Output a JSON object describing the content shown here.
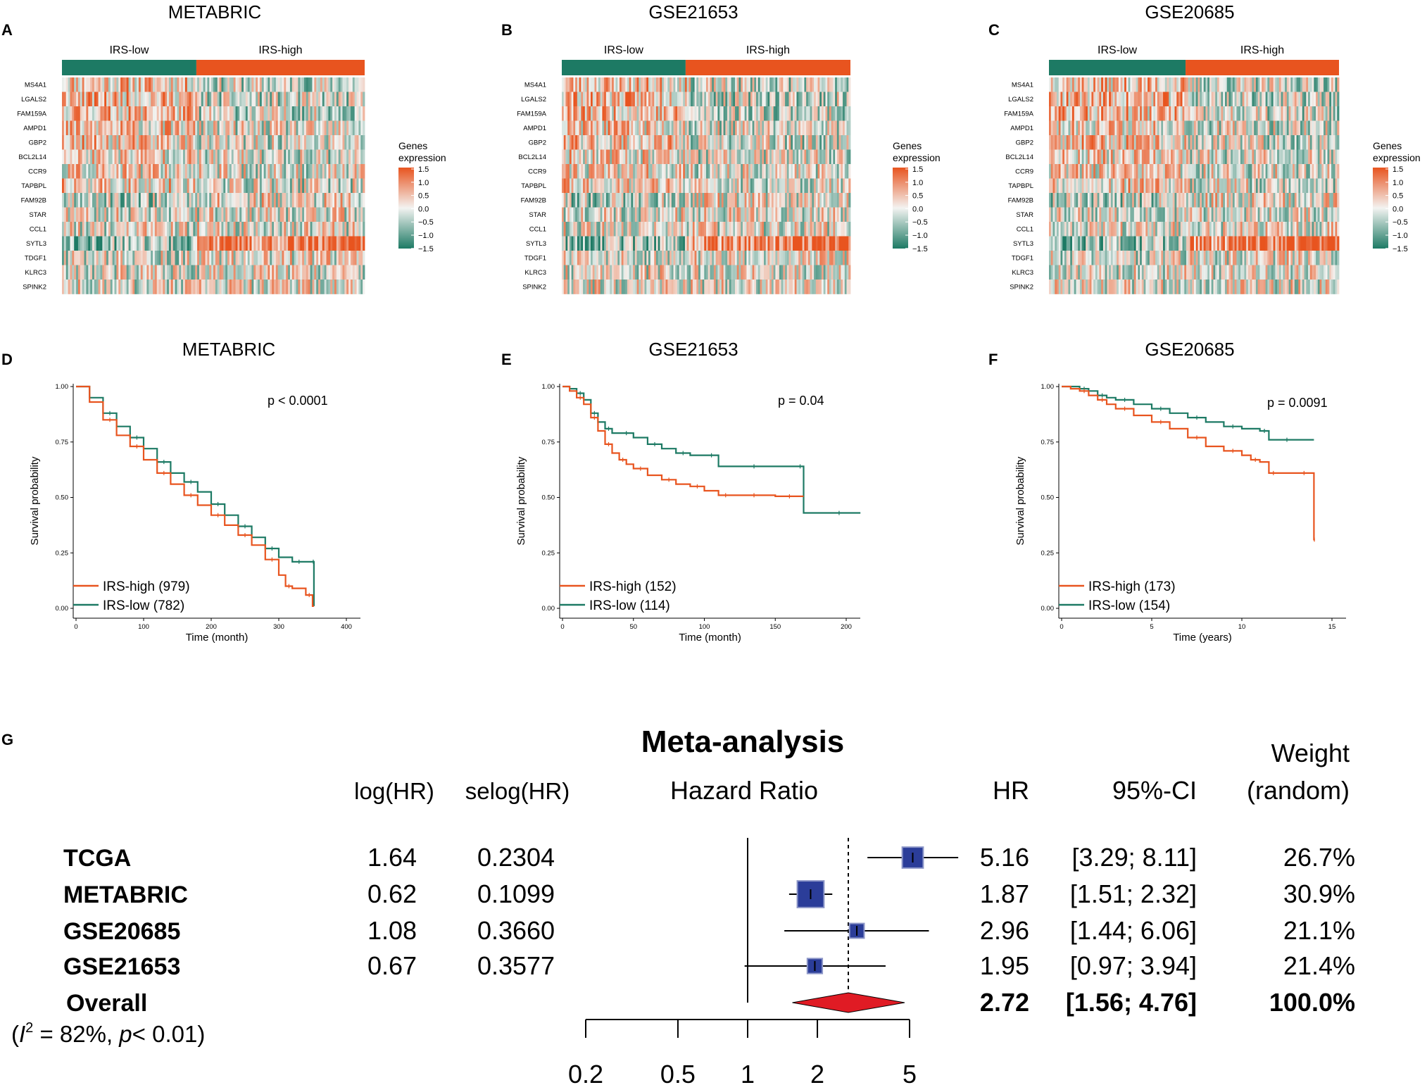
{
  "panel_letters": {
    "A": "A",
    "B": "B",
    "C": "C",
    "D": "D",
    "E": "E",
    "F": "F",
    "G": "G"
  },
  "colors": {
    "high": "#e8541f",
    "low": "#1d7a64",
    "mid": "#f3f3f1",
    "meta": "#2b3d99",
    "overall": "#e01b24"
  },
  "genes": [
    "MS4A1",
    "LGALS2",
    "FAM159A",
    "AMPD1",
    "GBP2",
    "BCL2L14",
    "CCR9",
    "TAPBPL",
    "FAM92B",
    "STAR",
    "CCL1",
    "SYTL3",
    "TDGF1",
    "KLRC3",
    "SPINK2"
  ],
  "heatmaps": [
    {
      "title": "METABRIC",
      "low_label": "IRS-low",
      "high_label": "IRS-high",
      "low_fraction": 0.444,
      "n_samples": 1761,
      "seed": 11
    },
    {
      "title": "GSE21653",
      "low_label": "IRS-low",
      "high_label": "IRS-high",
      "low_fraction": 0.429,
      "n_samples": 266,
      "seed": 23
    },
    {
      "title": "GSE20685",
      "low_label": "IRS-low",
      "high_label": "IRS-high",
      "low_fraction": 0.471,
      "n_samples": 327,
      "seed": 37
    }
  ],
  "legend": {
    "title_line1": "Genes",
    "title_line2": "expression",
    "ticks": [
      "1.5",
      "1.0",
      "0.5",
      "0.0",
      "−0.5",
      "−1.0",
      "−1.5"
    ]
  },
  "chart_data": [
    {
      "type": "line",
      "title": "METABRIC",
      "xlabel": "Time (month)",
      "ylabel": "Survival probability",
      "xlim": [
        0,
        400
      ],
      "ylim": [
        0,
        1
      ],
      "xticks": [
        "0",
        "100",
        "200",
        "300",
        "400"
      ],
      "yticks": [
        "0.00",
        "0.25",
        "0.50",
        "0.75",
        "1.00"
      ],
      "pvalue": "p < 0.0001",
      "series": [
        {
          "name": "IRS-high (979)",
          "color": "#e8541f",
          "x": [
            0,
            20,
            40,
            60,
            80,
            100,
            120,
            140,
            160,
            180,
            200,
            220,
            240,
            260,
            280,
            300,
            310,
            320,
            340,
            350,
            352
          ],
          "y": [
            1.0,
            0.93,
            0.85,
            0.78,
            0.73,
            0.67,
            0.61,
            0.56,
            0.51,
            0.465,
            0.42,
            0.375,
            0.33,
            0.285,
            0.22,
            0.15,
            0.1,
            0.09,
            0.06,
            0.01,
            0.01
          ]
        },
        {
          "name": "IRS-low (782)",
          "color": "#1d7a64",
          "x": [
            0,
            20,
            40,
            60,
            80,
            100,
            120,
            140,
            160,
            180,
            200,
            220,
            240,
            260,
            280,
            300,
            320,
            340,
            350,
            352
          ],
          "y": [
            1.0,
            0.95,
            0.88,
            0.82,
            0.77,
            0.72,
            0.66,
            0.61,
            0.57,
            0.525,
            0.47,
            0.42,
            0.37,
            0.32,
            0.27,
            0.23,
            0.21,
            0.21,
            0.21,
            0.01
          ]
        }
      ]
    },
    {
      "type": "line",
      "title": "GSE21653",
      "xlabel": "Time (month)",
      "ylabel": "Survival probability",
      "xlim": [
        0,
        200
      ],
      "ylim": [
        0,
        1
      ],
      "xticks": [
        "0",
        "50",
        "100",
        "150",
        "200"
      ],
      "yticks": [
        "0.00",
        "0.25",
        "0.50",
        "0.75",
        "1.00"
      ],
      "pvalue": "p = 0.04",
      "series": [
        {
          "name": "IRS-high (152)",
          "color": "#e8541f",
          "x": [
            0,
            5,
            10,
            15,
            20,
            25,
            30,
            35,
            40,
            45,
            50,
            60,
            70,
            80,
            90,
            100,
            110,
            120,
            130,
            140,
            150,
            170
          ],
          "y": [
            1.0,
            0.98,
            0.95,
            0.92,
            0.86,
            0.8,
            0.74,
            0.7,
            0.67,
            0.65,
            0.63,
            0.6,
            0.58,
            0.56,
            0.55,
            0.53,
            0.51,
            0.51,
            0.51,
            0.51,
            0.505,
            0.505
          ]
        },
        {
          "name": "IRS-low (114)",
          "color": "#1d7a64",
          "x": [
            0,
            5,
            10,
            15,
            20,
            25,
            30,
            35,
            40,
            50,
            60,
            70,
            80,
            90,
            100,
            110,
            120,
            150,
            165,
            170,
            180,
            210
          ],
          "y": [
            1.0,
            0.99,
            0.97,
            0.94,
            0.88,
            0.84,
            0.81,
            0.79,
            0.79,
            0.77,
            0.74,
            0.72,
            0.7,
            0.69,
            0.69,
            0.64,
            0.64,
            0.64,
            0.64,
            0.43,
            0.43,
            0.43
          ]
        }
      ]
    },
    {
      "type": "line",
      "title": "GSE20685",
      "xlabel": "Time (years)",
      "ylabel": "Survival probability",
      "xlim": [
        0,
        15
      ],
      "ylim": [
        0,
        1
      ],
      "xticks": [
        "0",
        "5",
        "10",
        "15"
      ],
      "yticks": [
        "0.00",
        "0.25",
        "0.50",
        "0.75",
        "1.00"
      ],
      "pvalue": "p = 0.0091",
      "series": [
        {
          "name": "IRS-high (173)",
          "color": "#e8541f",
          "x": [
            0,
            0.5,
            1,
            1.5,
            2,
            2.5,
            3,
            4,
            5,
            6,
            7,
            8,
            9,
            10,
            10.5,
            11,
            11.5,
            12,
            13,
            13.9,
            14,
            14.05
          ],
          "y": [
            1.0,
            0.99,
            0.98,
            0.96,
            0.94,
            0.92,
            0.9,
            0.87,
            0.84,
            0.81,
            0.77,
            0.73,
            0.71,
            0.69,
            0.67,
            0.66,
            0.61,
            0.61,
            0.61,
            0.61,
            0.31,
            0.31
          ]
        },
        {
          "name": "IRS-low (154)",
          "color": "#1d7a64",
          "x": [
            0,
            0.5,
            1,
            1.5,
            2,
            2.5,
            3,
            4,
            5,
            6,
            7,
            8,
            9,
            10,
            11,
            11.5,
            12,
            13,
            14
          ],
          "y": [
            1.0,
            1.0,
            0.99,
            0.98,
            0.96,
            0.95,
            0.94,
            0.92,
            0.9,
            0.88,
            0.86,
            0.84,
            0.82,
            0.81,
            0.8,
            0.76,
            0.76,
            0.76,
            0.76
          ]
        }
      ]
    },
    {
      "type": "forest",
      "title": "Meta-analysis",
      "xlabel": "Hazard Ratio",
      "xticks": [
        0.2,
        0.5,
        1,
        2,
        5
      ],
      "xtick_labels": [
        "0.2",
        "0.5",
        "1",
        "2",
        "5"
      ],
      "headers": {
        "loghr": "log(HR)",
        "selog": "selog(HR)",
        "hr": "HR",
        "ci": "95%-CI",
        "weight_line1": "Weight",
        "weight_line2": "(random)"
      },
      "studies": [
        {
          "name": "TCGA",
          "loghr": "1.64",
          "selog": "0.2304",
          "hr": 5.16,
          "lo": 3.29,
          "hi": 8.11,
          "hr_text": "5.16",
          "ci_text": "[3.29; 8.11]",
          "weight": "26.7%",
          "w": 26.7
        },
        {
          "name": "METABRIC",
          "loghr": "0.62",
          "selog": "0.1099",
          "hr": 1.87,
          "lo": 1.51,
          "hi": 2.32,
          "hr_text": "1.87",
          "ci_text": "[1.51; 2.32]",
          "weight": "30.9%",
          "w": 30.9
        },
        {
          "name": "GSE20685",
          "loghr": "1.08",
          "selog": "0.3660",
          "hr": 2.96,
          "lo": 1.44,
          "hi": 6.06,
          "hr_text": "2.96",
          "ci_text": "[1.44; 6.06]",
          "weight": "21.1%",
          "w": 21.1
        },
        {
          "name": "GSE21653",
          "loghr": "0.67",
          "selog": "0.3577",
          "hr": 1.95,
          "lo": 0.97,
          "hi": 3.94,
          "hr_text": "1.95",
          "ci_text": "[0.97; 3.94]",
          "weight": "21.4%",
          "w": 21.4
        }
      ],
      "overall": {
        "name": "Overall",
        "hr": 2.72,
        "lo": 1.56,
        "hi": 4.76,
        "hr_text": "2.72",
        "ci_text": "[1.56; 4.76]",
        "weight": "100.0%"
      },
      "heterogeneity": {
        "open": "(",
        "I": "I",
        "sup": "2",
        "rest": " = 82%, ",
        "p": "p",
        "tail": "< 0.01)"
      }
    }
  ]
}
